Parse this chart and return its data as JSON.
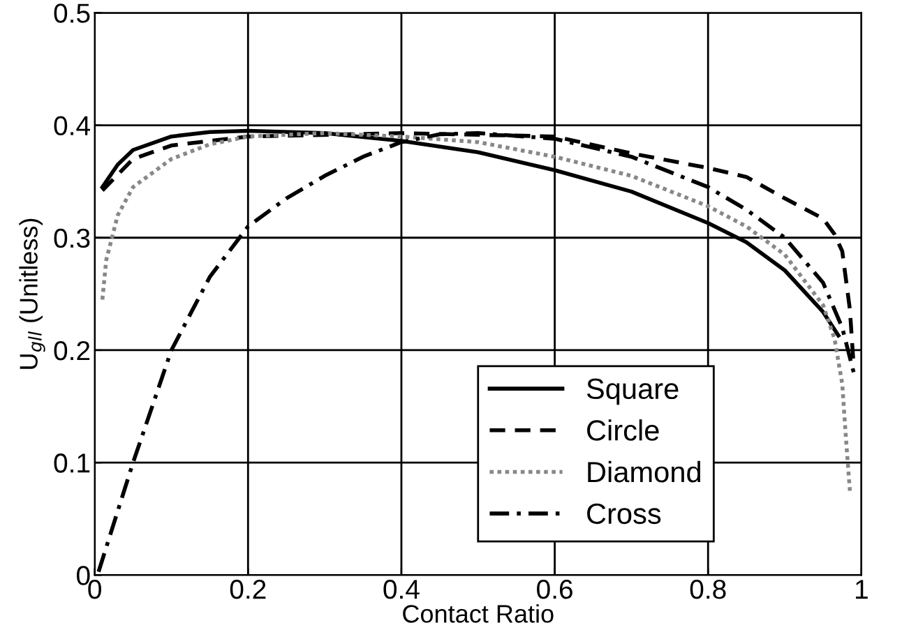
{
  "chart_data": {
    "type": "line",
    "xlabel": "Contact Ratio",
    "ylabel": "U$_{gll}$ (Unitless)",
    "xlim": [
      0,
      1
    ],
    "ylim": [
      0,
      0.5
    ],
    "xticks": [
      0,
      0.2,
      0.4,
      0.6,
      0.8,
      1
    ],
    "yticks": [
      0,
      0.1,
      0.2,
      0.3,
      0.4,
      0.5
    ],
    "grid": true,
    "legend": "bottom right",
    "marker": "none",
    "series": [
      {
        "name": "Square",
        "color": "#000000",
        "line_style": "solid",
        "x": [
          0.01,
          0.03,
          0.05,
          0.1,
          0.15,
          0.2,
          0.3,
          0.4,
          0.5,
          0.6,
          0.7,
          0.8,
          0.85,
          0.9,
          0.95,
          0.97
        ],
        "values": [
          0.345,
          0.365,
          0.378,
          0.39,
          0.394,
          0.395,
          0.393,
          0.386,
          0.376,
          0.36,
          0.341,
          0.313,
          0.296,
          0.271,
          0.234,
          0.213
        ]
      },
      {
        "name": "Circle",
        "color": "#000000",
        "line_style": "dashed",
        "x": [
          0.01,
          0.05,
          0.1,
          0.2,
          0.4,
          0.6,
          0.7,
          0.8,
          0.85,
          0.9,
          0.95,
          0.965,
          0.975,
          0.985,
          0.99
        ],
        "values": [
          0.342,
          0.37,
          0.382,
          0.39,
          0.393,
          0.39,
          0.375,
          0.362,
          0.354,
          0.335,
          0.317,
          0.303,
          0.288,
          0.236,
          0.185
        ]
      },
      {
        "name": "Diamond",
        "color": "#888888",
        "line_style": "dotted",
        "x": [
          0.01,
          0.015,
          0.03,
          0.05,
          0.1,
          0.15,
          0.2,
          0.3,
          0.4,
          0.5,
          0.6,
          0.7,
          0.8,
          0.85,
          0.9,
          0.95,
          0.965,
          0.975,
          0.98,
          0.985
        ],
        "values": [
          0.245,
          0.28,
          0.32,
          0.345,
          0.37,
          0.383,
          0.39,
          0.393,
          0.39,
          0.385,
          0.372,
          0.355,
          0.328,
          0.31,
          0.285,
          0.24,
          0.21,
          0.17,
          0.12,
          0.075
        ]
      },
      {
        "name": "Cross",
        "color": "#000000",
        "line_style": "dashdot",
        "x": [
          0.005,
          0.05,
          0.1,
          0.15,
          0.2,
          0.25,
          0.3,
          0.35,
          0.4,
          0.45,
          0.5,
          0.6,
          0.7,
          0.8,
          0.85,
          0.9,
          0.95,
          0.975,
          0.99
        ],
        "values": [
          0.003,
          0.1,
          0.2,
          0.265,
          0.31,
          0.335,
          0.355,
          0.372,
          0.385,
          0.392,
          0.393,
          0.388,
          0.372,
          0.345,
          0.325,
          0.3,
          0.26,
          0.22,
          0.18
        ]
      }
    ]
  }
}
